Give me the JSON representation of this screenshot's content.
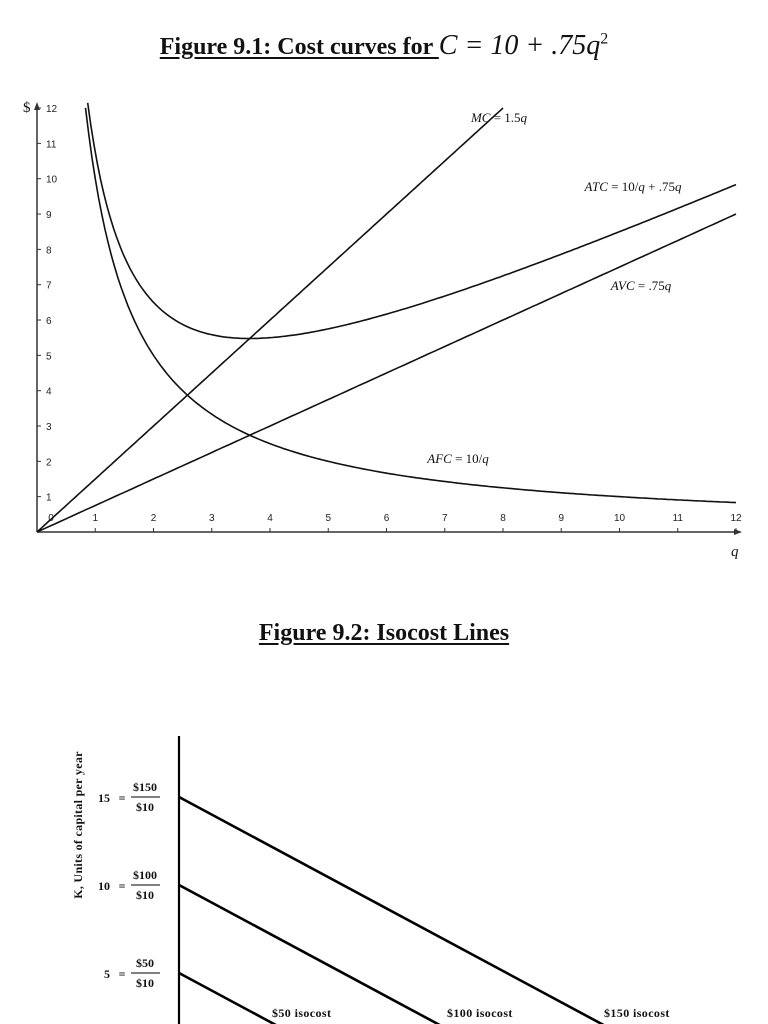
{
  "figure1": {
    "title_text": "Figure 9.1: Cost curves for ",
    "title_equation": "C = 10 + .75q",
    "title_exponent": "2"
  },
  "figure2": {
    "title_text": "Figure 9.2: Isocost Lines"
  },
  "chart_data": [
    {
      "type": "line",
      "title": "Figure 9.1: Cost curves for C = 10 + .75q^2",
      "xlabel": "q",
      "ylabel": "$",
      "xlim": [
        0,
        12
      ],
      "ylim": [
        0,
        12
      ],
      "x_ticks": [
        0,
        1,
        2,
        3,
        4,
        5,
        6,
        7,
        8,
        9,
        10,
        11,
        12
      ],
      "y_ticks": [
        0,
        1,
        2,
        3,
        4,
        5,
        6,
        7,
        8,
        9,
        10,
        11,
        12
      ],
      "grid": false,
      "series": [
        {
          "name": "MC = 1.5q",
          "formula": "1.5q",
          "x": [
            0,
            2,
            4,
            6,
            8
          ],
          "values": [
            0,
            3,
            6,
            9,
            12
          ],
          "label_pos": [
            7.45,
            11.6
          ]
        },
        {
          "name": "ATC = 10/q + .75q",
          "formula": "10/q+.75q",
          "x": [
            0.87,
            1,
            2,
            3,
            3.65,
            4,
            6,
            8,
            10,
            12
          ],
          "values": [
            12,
            10.75,
            6.5,
            5.58,
            5.48,
            5.5,
            6.17,
            7.25,
            8.5,
            9.83
          ],
          "label_pos": [
            9.4,
            9.65
          ]
        },
        {
          "name": "AVC = .75q",
          "formula": ".75q",
          "x": [
            0,
            4,
            8,
            12
          ],
          "values": [
            0,
            3,
            6,
            9
          ],
          "label_pos": [
            9.85,
            6.85
          ]
        },
        {
          "name": "AFC = 10/q",
          "formula": "10/q",
          "x": [
            0.833,
            1,
            2,
            3,
            4,
            6,
            8,
            10,
            12
          ],
          "values": [
            12,
            10,
            5,
            3.33,
            2.5,
            1.67,
            1.25,
            1,
            0.83
          ],
          "label_pos": [
            6.7,
            1.95
          ]
        }
      ]
    },
    {
      "type": "line",
      "title": "Figure 9.2: Isocost Lines",
      "ylabel": "K, Units of capital per year",
      "y_ticks": [
        {
          "value": 5,
          "numerator": "$50",
          "denominator": "$10"
        },
        {
          "value": 10,
          "numerator": "$100",
          "denominator": "$10"
        },
        {
          "value": 15,
          "numerator": "$150",
          "denominator": "$10"
        }
      ],
      "series": [
        {
          "name": "$50 isocost",
          "k_intercept": 5
        },
        {
          "name": "$100 isocost",
          "k_intercept": 10
        },
        {
          "name": "$150 isocost",
          "k_intercept": 15
        }
      ]
    }
  ]
}
